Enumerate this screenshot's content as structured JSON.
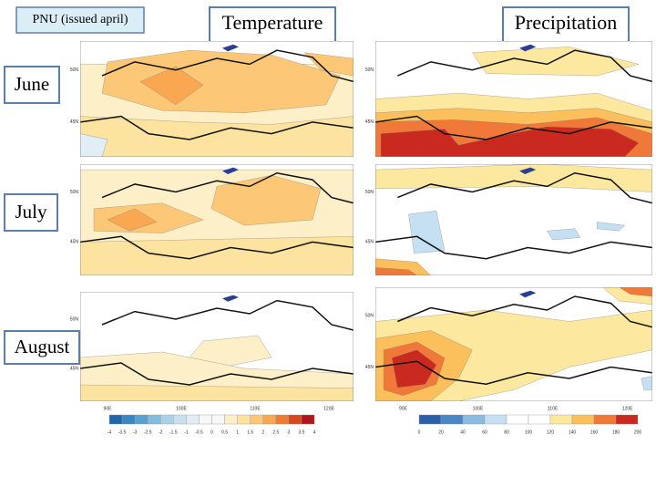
{
  "header": {
    "title": "PNU (issued april)"
  },
  "columns": [
    "Temperature",
    "Precipitation"
  ],
  "rows": [
    "June",
    "July",
    "August"
  ],
  "map_labels": {
    "lat": [
      "50N",
      "45N"
    ],
    "lon": [
      "90E",
      "100E",
      "110E",
      "120E"
    ]
  },
  "colorbars": [
    {
      "labels": [
        -4,
        -3.5,
        -3,
        -2.5,
        -2,
        -1.5,
        -1,
        -0.5,
        0,
        0.5,
        1,
        1.5,
        2,
        2.5,
        3,
        3.5,
        4
      ],
      "colors": [
        "#2166ac",
        "#3a86c1",
        "#5aa1cf",
        "#85bcdb",
        "#a9d0e6",
        "#c8e1ef",
        "#e1eef6",
        "#f7f7f7",
        "#f7f7f7",
        "#fdf0c8",
        "#fde3a0",
        "#fcc877",
        "#f9a750",
        "#f07c33",
        "#d9471f",
        "#b0151b"
      ]
    },
    {
      "labels": [
        0,
        20,
        40,
        60,
        80,
        100,
        120,
        140,
        160,
        180,
        200
      ],
      "colors": [
        "#2c5fa8",
        "#4a86c5",
        "#8cbbe0",
        "#c5e0f3",
        "#ffffff",
        "#ffffff",
        "#fde8a0",
        "#fbbf5c",
        "#f0793a",
        "#c9291f"
      ]
    }
  ]
}
